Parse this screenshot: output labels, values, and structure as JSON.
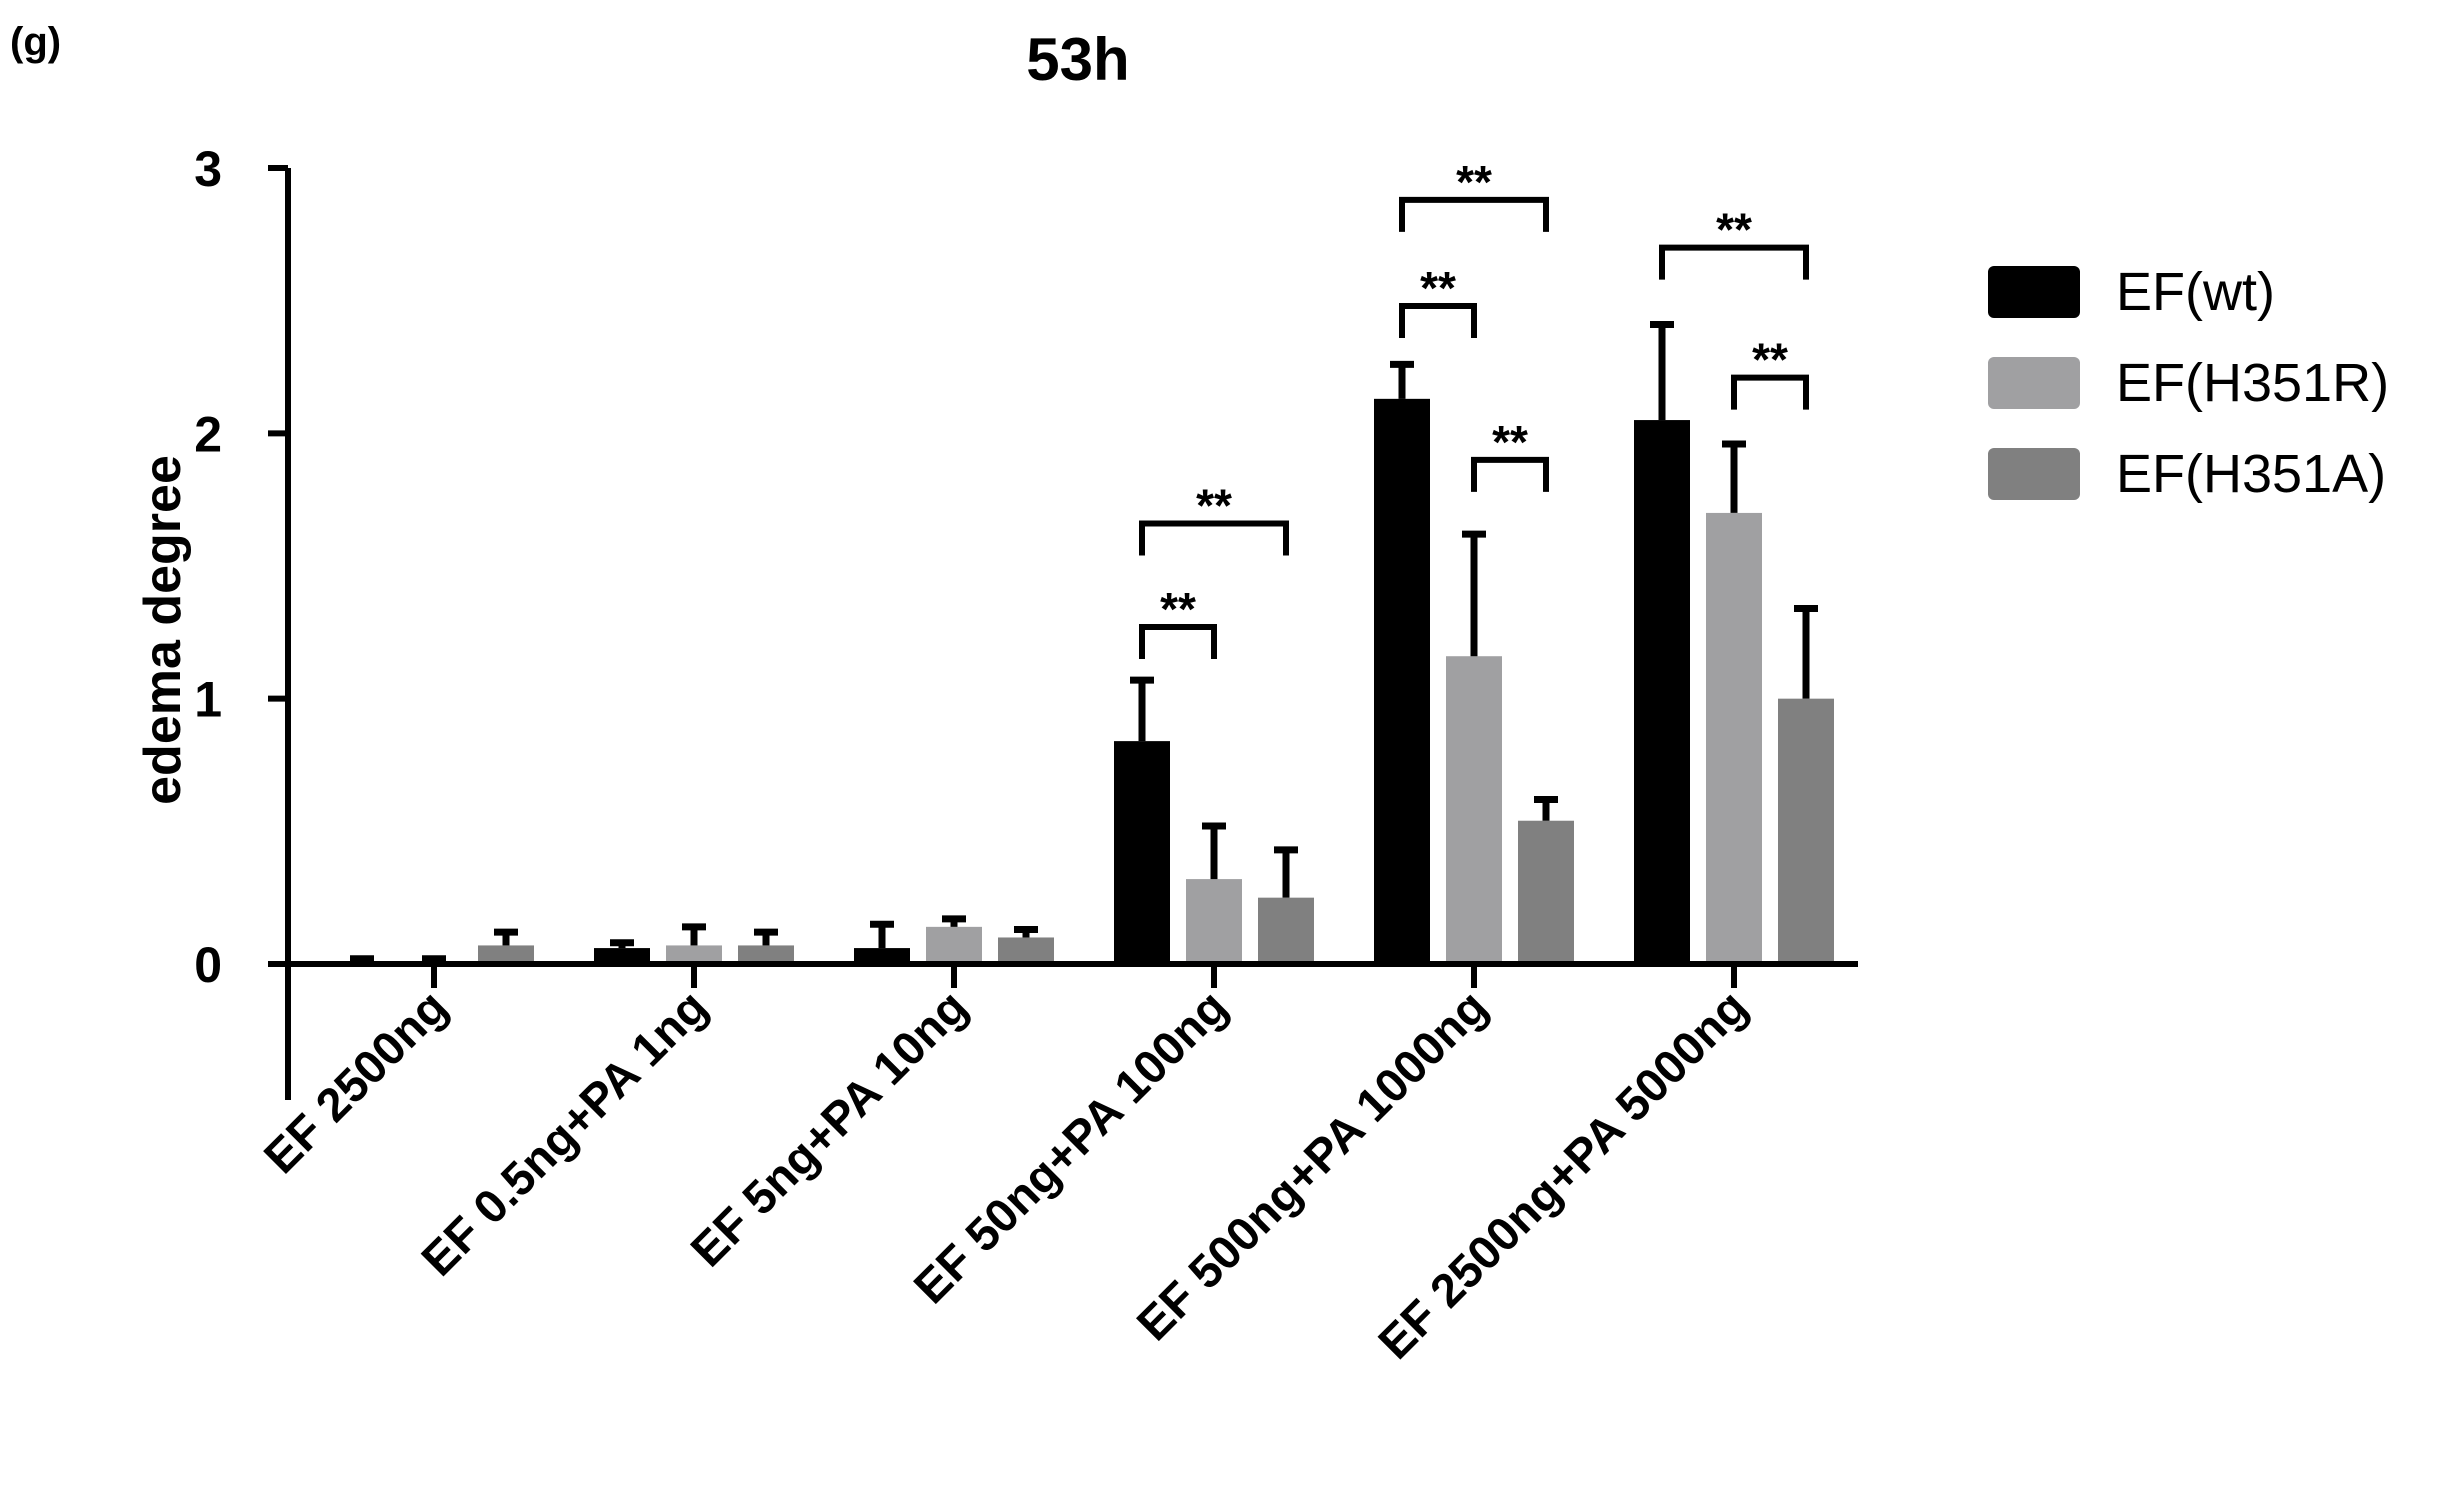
{
  "panel_label": "(g)",
  "chart_data": {
    "type": "bar",
    "title": "53h",
    "xlabel": "",
    "ylabel": "edema degree",
    "ylim": [
      0,
      3
    ],
    "yticks": [
      0,
      1,
      2,
      3
    ],
    "categories": [
      "EF 2500ng",
      "EF 0.5ng+PA 1ng",
      "EF 5ng+PA 10ng",
      "EF 50ng+PA 100ng",
      "EF 500ng+PA 1000ng",
      "EF 2500ng+PA 5000ng"
    ],
    "series": [
      {
        "name": "EF(wt)",
        "color": "#000000",
        "values": [
          0.0,
          0.06,
          0.06,
          0.84,
          2.13,
          2.05
        ],
        "errors": [
          0.02,
          0.02,
          0.09,
          0.23,
          0.13,
          0.36
        ]
      },
      {
        "name": "EF(H351R)",
        "color": "#a0a0a2",
        "values": [
          -0.01,
          0.07,
          0.14,
          0.32,
          1.16,
          1.7
        ],
        "errors": [
          0.03,
          0.07,
          0.03,
          0.2,
          0.46,
          0.26
        ]
      },
      {
        "name": "EF(H351A)",
        "color": "#808080",
        "values": [
          0.07,
          0.07,
          0.1,
          0.25,
          0.54,
          1.0
        ],
        "errors": [
          0.05,
          0.05,
          0.03,
          0.18,
          0.08,
          0.34
        ]
      }
    ],
    "significance": [
      {
        "category": 3,
        "from": 0,
        "to": 1,
        "label": "**",
        "y": 1.27
      },
      {
        "category": 3,
        "from": 0,
        "to": 2,
        "label": "**",
        "y": 1.66
      },
      {
        "category": 4,
        "from": 0,
        "to": 1,
        "label": "**",
        "y": 2.48
      },
      {
        "category": 4,
        "from": 0,
        "to": 2,
        "label": "**",
        "y": 2.88
      },
      {
        "category": 4,
        "from": 1,
        "to": 2,
        "label": "**",
        "y": 1.9
      },
      {
        "category": 5,
        "from": 0,
        "to": 2,
        "label": "**",
        "y": 2.7
      },
      {
        "category": 5,
        "from": 1,
        "to": 2,
        "label": "**",
        "y": 2.21
      }
    ],
    "legend_position": "top-right",
    "grid": false
  }
}
